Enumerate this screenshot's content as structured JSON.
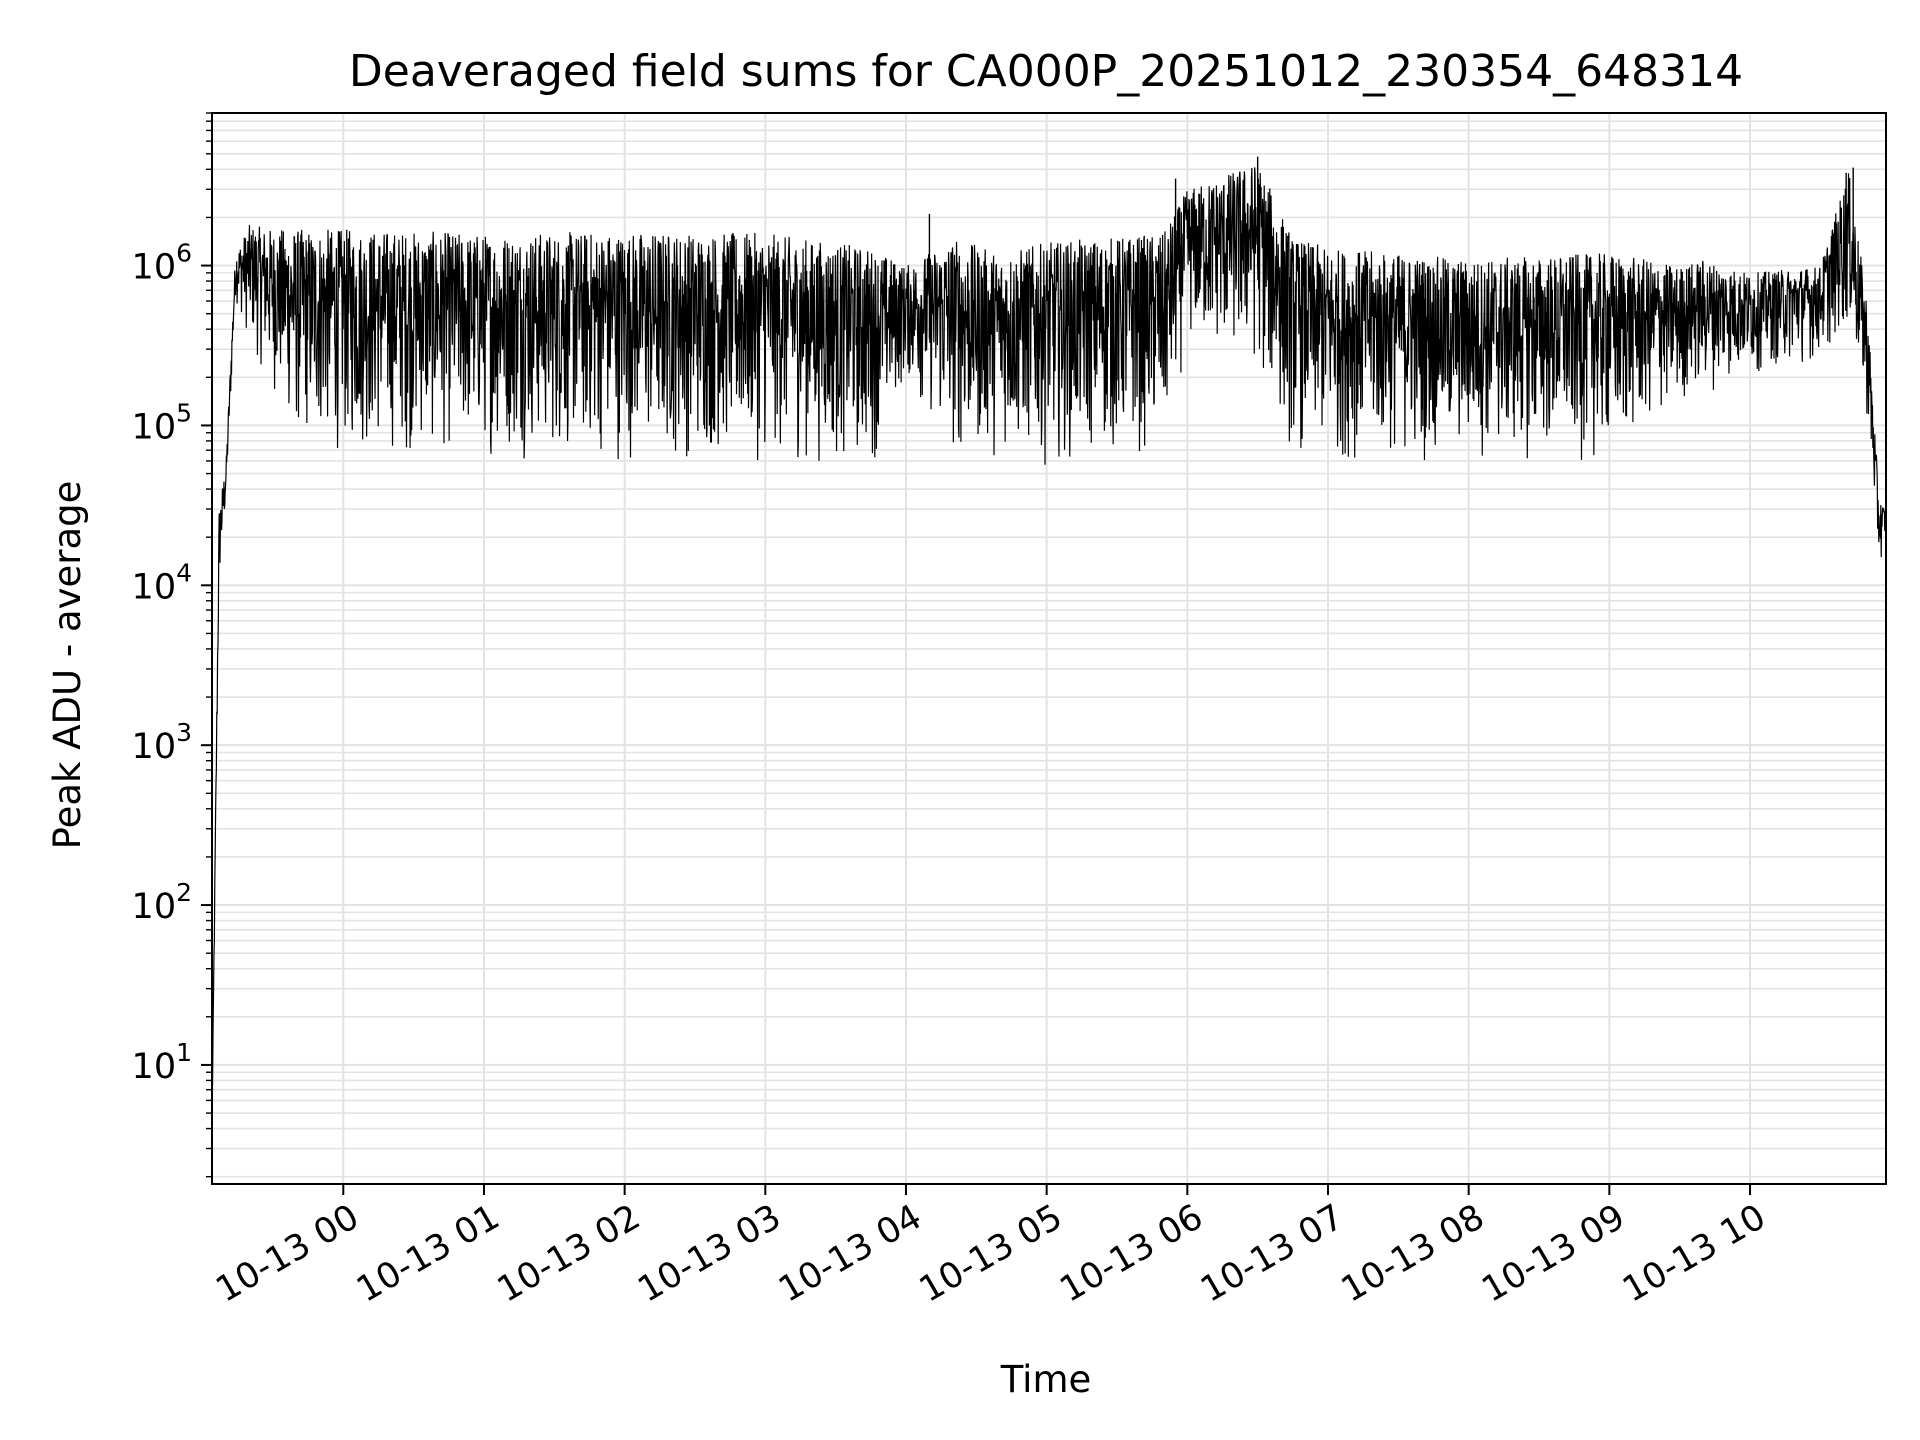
{
  "chart_data": {
    "type": "line",
    "title": "Deaveraged field sums for CA000P_20251012_230354_648314",
    "xlabel": "Time",
    "ylabel": "Peak ADU - average",
    "x_start": "2025-10-12 23:04",
    "x_end": "2025-10-13 10:58",
    "xlim": [
      "2025-10-12 23:04",
      "2025-10-13 10:58"
    ],
    "ylim": [
      1.8,
      9000000
    ],
    "yscale": "log",
    "grid": {
      "major": true,
      "minor": true,
      "color": "#e3e3e3"
    },
    "x_ticks": [
      {
        "value": "2025-10-13 00:00",
        "label": "10-13 00"
      },
      {
        "value": "2025-10-13 01:00",
        "label": "10-13 01"
      },
      {
        "value": "2025-10-13 02:00",
        "label": "10-13 02"
      },
      {
        "value": "2025-10-13 03:00",
        "label": "10-13 03"
      },
      {
        "value": "2025-10-13 04:00",
        "label": "10-13 04"
      },
      {
        "value": "2025-10-13 05:00",
        "label": "10-13 05"
      },
      {
        "value": "2025-10-13 06:00",
        "label": "10-13 06"
      },
      {
        "value": "2025-10-13 07:00",
        "label": "10-13 07"
      },
      {
        "value": "2025-10-13 08:00",
        "label": "10-13 08"
      },
      {
        "value": "2025-10-13 09:00",
        "label": "10-13 09"
      },
      {
        "value": "2025-10-13 10:00",
        "label": "10-13 10"
      }
    ],
    "y_ticks": [
      {
        "value": 10,
        "base": "10",
        "exp": "1"
      },
      {
        "value": 100,
        "base": "10",
        "exp": "2"
      },
      {
        "value": 1000,
        "base": "10",
        "exp": "3"
      },
      {
        "value": 10000,
        "base": "10",
        "exp": "4"
      },
      {
        "value": 100000,
        "base": "10",
        "exp": "5"
      },
      {
        "value": 1000000,
        "base": "10",
        "exp": "6"
      }
    ],
    "series": [
      {
        "color": "#000000",
        "envelope": [
          {
            "t": "2025-10-12 23:04",
            "low": 3.5,
            "high": 4.5
          },
          {
            "t": "2025-10-12 23:07",
            "low": 8000,
            "high": 30000
          },
          {
            "t": "2025-10-12 23:10",
            "low": 30000,
            "high": 60000
          },
          {
            "t": "2025-10-12 23:14",
            "low": 600000,
            "high": 1200000
          },
          {
            "t": "2025-10-12 23:20",
            "low": 300000,
            "high": 1800000
          },
          {
            "t": "2025-10-12 23:30",
            "low": 150000,
            "high": 1700000
          },
          {
            "t": "2025-10-12 23:40",
            "low": 70000,
            "high": 1700000
          },
          {
            "t": "2025-10-13 00:00",
            "low": 60000,
            "high": 1700000
          },
          {
            "t": "2025-10-13 01:00",
            "low": 60000,
            "high": 1600000
          },
          {
            "t": "2025-10-13 02:00",
            "low": 55000,
            "high": 1650000
          },
          {
            "t": "2025-10-13 03:00",
            "low": 55000,
            "high": 1600000
          },
          {
            "t": "2025-10-13 03:45",
            "low": 50000,
            "high": 1300000
          },
          {
            "t": "2025-10-13 04:00",
            "low": 180000,
            "high": 1000000
          },
          {
            "t": "2025-10-13 04:20",
            "low": 55000,
            "high": 1500000
          },
          {
            "t": "2025-10-13 04:40",
            "low": 60000,
            "high": 1200000
          },
          {
            "t": "2025-10-13 05:00",
            "low": 55000,
            "high": 1400000
          },
          {
            "t": "2025-10-13 05:50",
            "low": 60000,
            "high": 1600000
          },
          {
            "t": "2025-10-13 06:00",
            "low": 300000,
            "high": 3000000
          },
          {
            "t": "2025-10-13 06:30",
            "low": 200000,
            "high": 4500000
          },
          {
            "t": "2025-10-13 06:45",
            "low": 60000,
            "high": 1500000
          },
          {
            "t": "2025-10-13 07:00",
            "low": 55000,
            "high": 1300000
          },
          {
            "t": "2025-10-13 08:00",
            "low": 55000,
            "high": 1100000
          },
          {
            "t": "2025-10-13 09:00",
            "low": 55000,
            "high": 1200000
          },
          {
            "t": "2025-10-13 09:30",
            "low": 120000,
            "high": 1000000
          },
          {
            "t": "2025-10-13 09:40",
            "low": 150000,
            "high": 1100000
          },
          {
            "t": "2025-10-13 10:00",
            "low": 200000,
            "high": 900000
          },
          {
            "t": "2025-10-13 10:30",
            "low": 250000,
            "high": 1000000
          },
          {
            "t": "2025-10-13 10:42",
            "low": 350000,
            "high": 4000000
          },
          {
            "t": "2025-10-13 10:50",
            "low": 100000,
            "high": 600000
          },
          {
            "t": "2025-10-13 10:55",
            "low": 12000,
            "high": 35000
          },
          {
            "t": "2025-10-13 10:58",
            "low": 20000,
            "high": 30000
          }
        ],
        "spikes": [
          {
            "t": "2025-10-13 04:10",
            "value": 2100000
          },
          {
            "t": "2025-10-13 05:55",
            "value": 3500000
          },
          {
            "t": "2025-10-13 06:30",
            "value": 4800000
          },
          {
            "t": "2025-10-13 10:41",
            "value": 3800000
          },
          {
            "t": "2025-10-13 10:44",
            "value": 4100000
          }
        ]
      }
    ]
  }
}
